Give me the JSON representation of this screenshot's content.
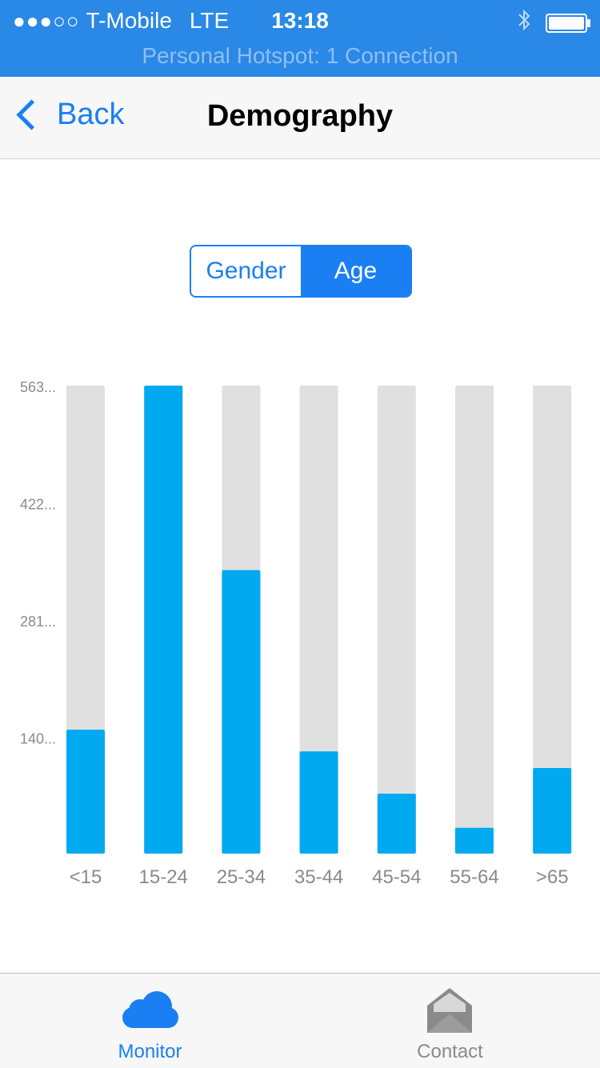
{
  "status_bar": {
    "signal": "●●●○○",
    "carrier": "T-Mobile",
    "network": "LTE",
    "time": "13:18",
    "hotspot": "Personal Hotspot: 1 Connection",
    "icons": [
      "bluetooth-icon",
      "battery-icon"
    ]
  },
  "nav": {
    "back_label": "Back",
    "title": "Demography"
  },
  "segment": {
    "options": [
      "Gender",
      "Age"
    ],
    "selected": "Age"
  },
  "chart_data": {
    "type": "bar",
    "categories": [
      "<15",
      "15-24",
      "25-34",
      "35-44",
      "45-54",
      "55-64",
      ">65"
    ],
    "values": [
      149,
      563,
      341,
      123,
      72,
      31,
      103
    ],
    "ylim": [
      0,
      563
    ],
    "ytick_labels": [
      "563...",
      "422...",
      "281...",
      "140..."
    ],
    "ytick_values": [
      563,
      422,
      281,
      140
    ],
    "colors": {
      "bar": "#00a9f0",
      "track": "#e0e0e0"
    },
    "grid": false
  },
  "tabbar": {
    "tabs": [
      {
        "label": "Monitor",
        "icon": "cloud-icon",
        "active": true
      },
      {
        "label": "Contact",
        "icon": "envelope-icon",
        "active": false
      }
    ]
  },
  "colors": {
    "status_bar": "#2a88e6",
    "accent": "#1a7ff2"
  }
}
